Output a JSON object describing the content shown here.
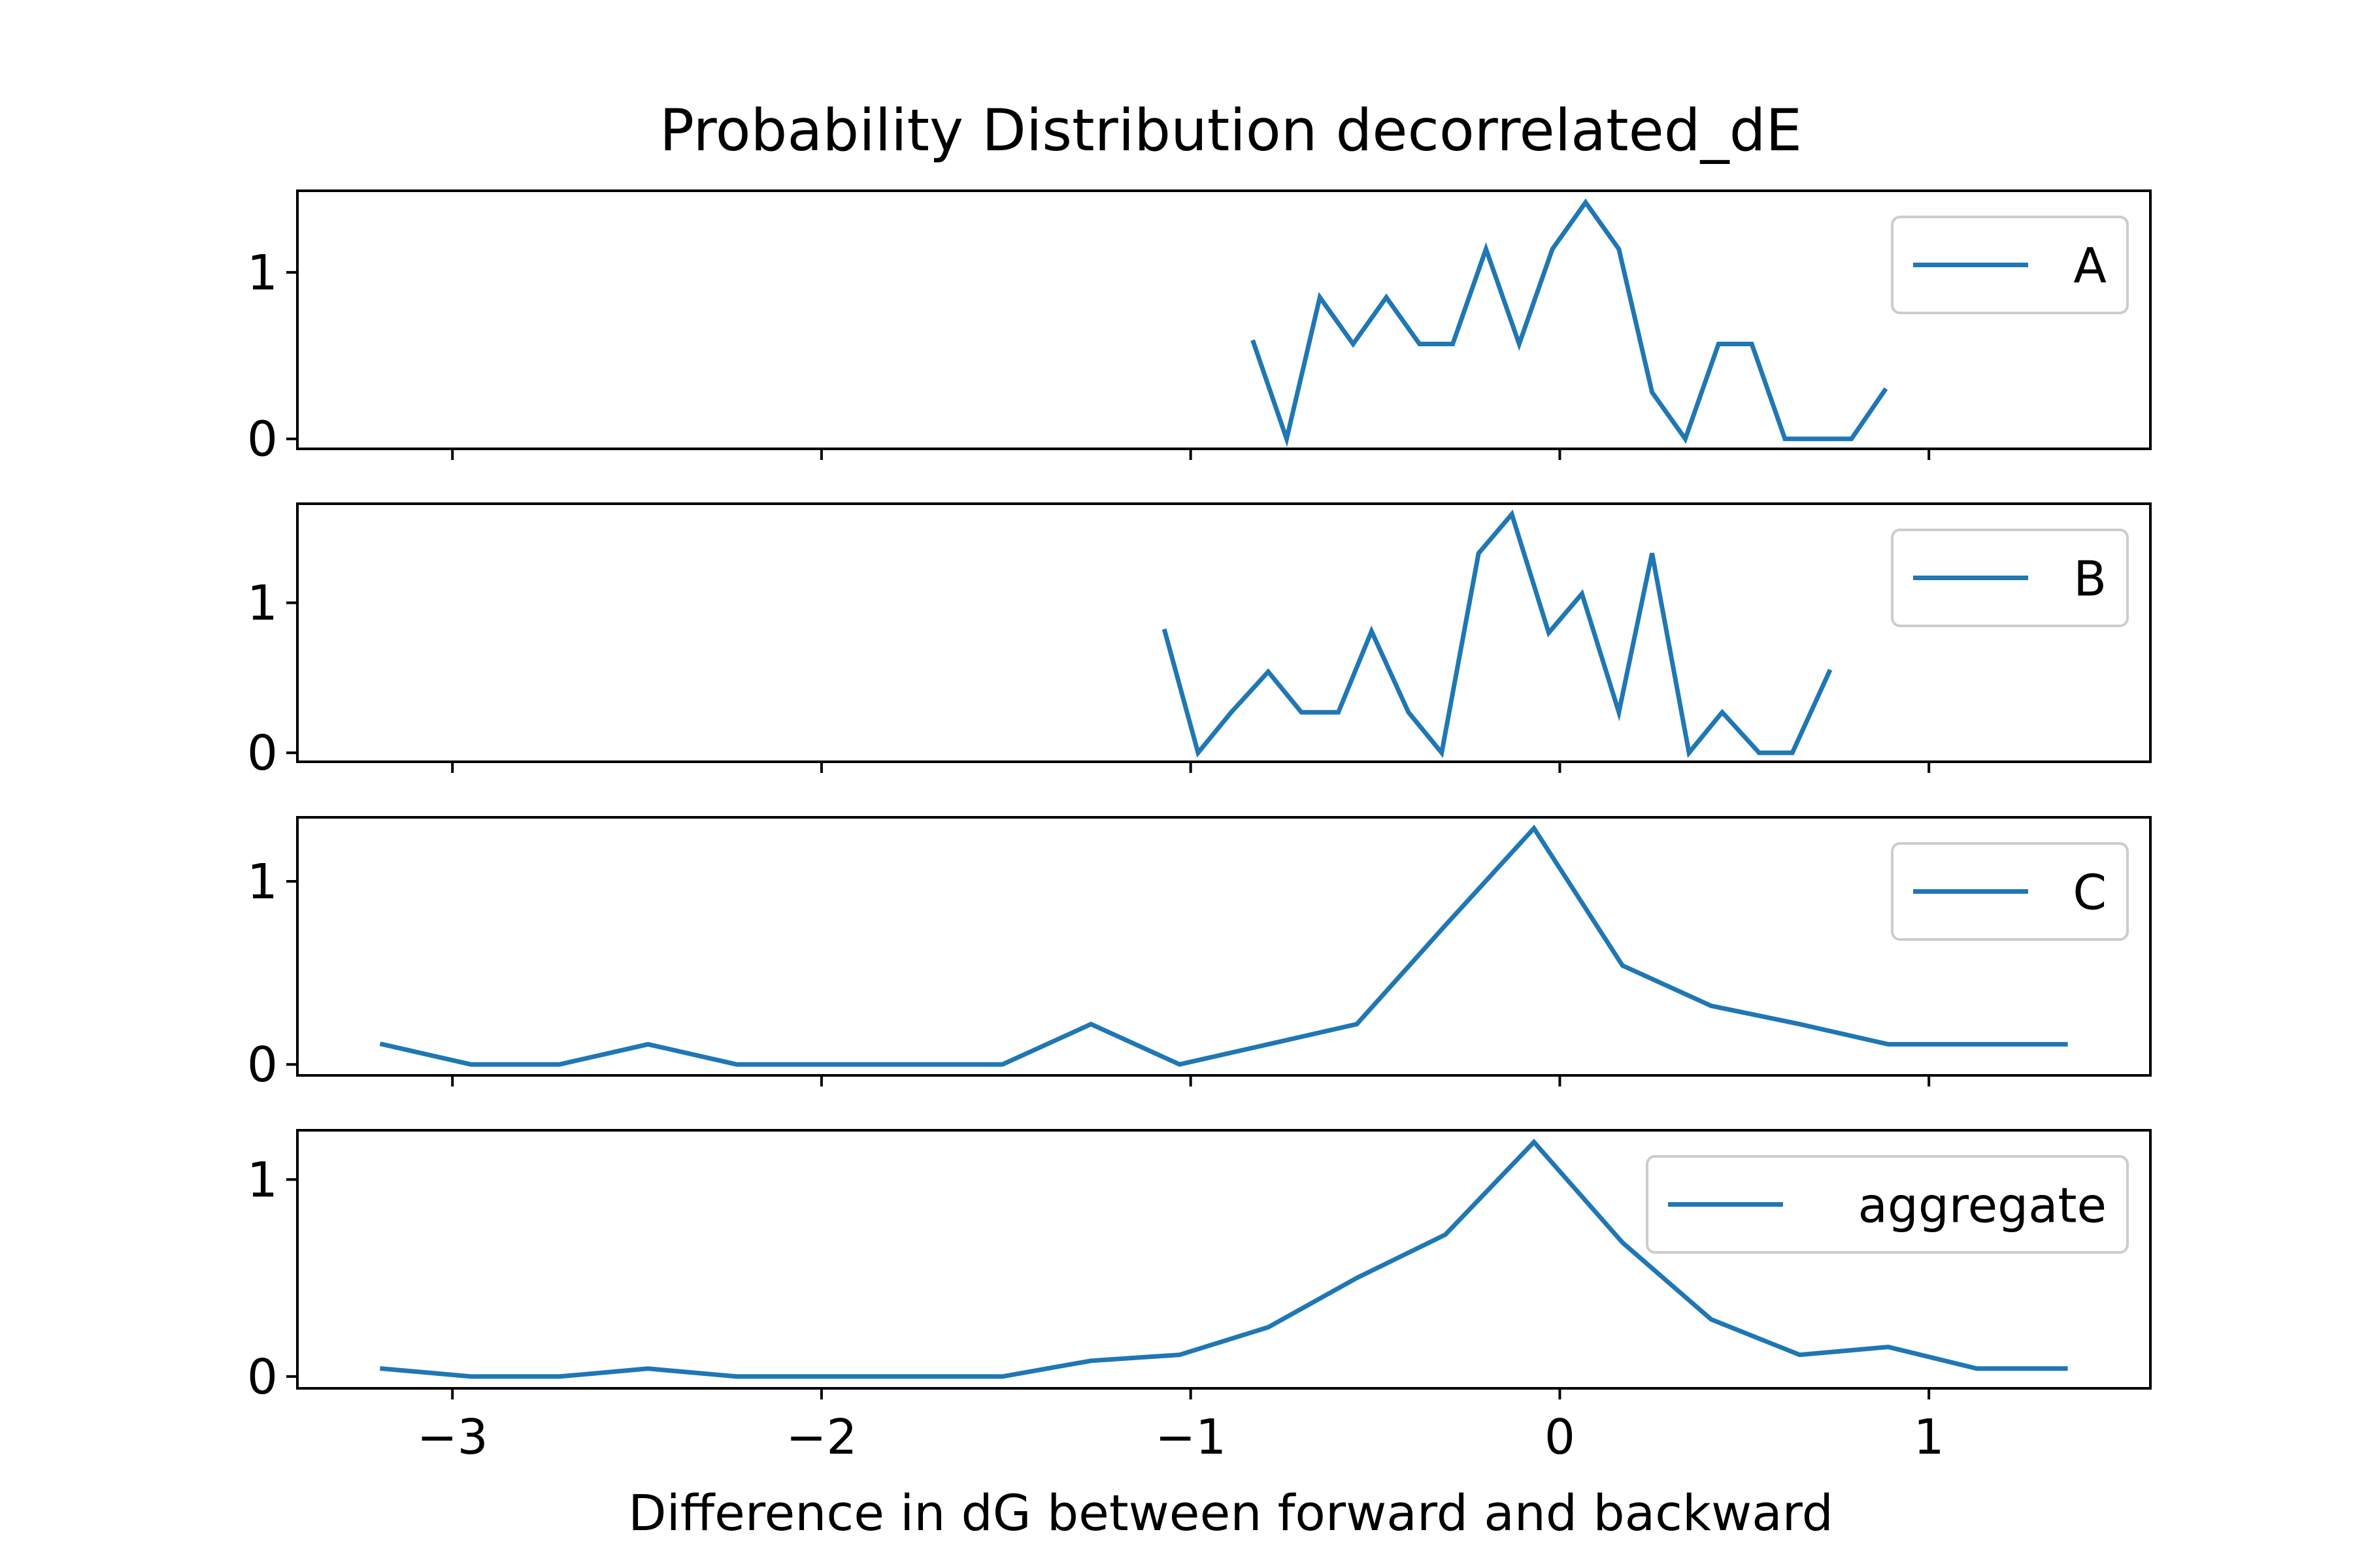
{
  "chart_data": {
    "type": "line",
    "title": "Probability Distribution decorrelated_dE",
    "xlabel": "Difference in dG between forward and backward",
    "ylabel": "",
    "xlim": [
      -3.42,
      1.6
    ],
    "xticks": [
      -3,
      -2,
      -1,
      0,
      1
    ],
    "xtick_labels": [
      "−3",
      "−2",
      "−1",
      "0",
      "1"
    ],
    "line_color": "#1f77b4",
    "legend_position": "upper right",
    "subplots": [
      {
        "ylim": [
          -0.06,
          1.49
        ],
        "yticks": [
          0,
          1
        ],
        "ytick_labels": [
          "0",
          "1"
        ],
        "series": [
          {
            "name": "A",
            "x": [
              -0.83,
              -0.74,
              -0.65,
              -0.56,
              -0.47,
              -0.38,
              -0.29,
              -0.2,
              -0.11,
              -0.02,
              0.07,
              0.16,
              0.25,
              0.34,
              0.43,
              0.52,
              0.61,
              0.7,
              0.79,
              0.88
            ],
            "y": [
              0.58,
              0.0,
              0.85,
              0.57,
              0.85,
              0.57,
              0.57,
              1.14,
              0.57,
              1.14,
              1.42,
              1.14,
              0.28,
              0.0,
              0.57,
              0.57,
              0.0,
              0.0,
              0.0,
              0.29
            ]
          }
        ]
      },
      {
        "ylim": [
          -0.06,
          1.66
        ],
        "yticks": [
          0,
          1
        ],
        "ytick_labels": [
          "0",
          "1"
        ],
        "series": [
          {
            "name": "B",
            "x": [
              -1.07,
              -0.98,
              -0.89,
              -0.79,
              -0.7,
              -0.6,
              -0.51,
              -0.41,
              -0.32,
              -0.22,
              -0.13,
              -0.03,
              0.06,
              0.16,
              0.25,
              0.35,
              0.44,
              0.54,
              0.63,
              0.73
            ],
            "y": [
              0.81,
              0.0,
              0.27,
              0.54,
              0.27,
              0.27,
              0.81,
              0.27,
              0.0,
              1.33,
              1.59,
              0.8,
              1.06,
              0.27,
              1.33,
              0.0,
              0.27,
              0.0,
              0.0,
              0.54
            ]
          }
        ]
      },
      {
        "ylim": [
          -0.06,
          1.35
        ],
        "yticks": [
          0,
          1
        ],
        "ytick_labels": [
          "0",
          "1"
        ],
        "series": [
          {
            "name": "C",
            "x": [
              -3.19,
              -2.95,
              -2.71,
              -2.47,
              -2.23,
              -1.99,
              -1.75,
              -1.51,
              -1.27,
              -1.03,
              -0.79,
              -0.55,
              -0.31,
              -0.07,
              0.17,
              0.41,
              0.65,
              0.89,
              1.13,
              1.37
            ],
            "y": [
              0.11,
              0.0,
              0.0,
              0.11,
              0.0,
              0.0,
              0.0,
              0.0,
              0.22,
              0.0,
              0.11,
              0.22,
              0.76,
              1.29,
              0.54,
              0.32,
              0.22,
              0.11,
              0.11,
              0.11
            ]
          }
        ]
      },
      {
        "ylim": [
          -0.06,
          1.25
        ],
        "yticks": [
          0,
          1
        ],
        "ytick_labels": [
          "0",
          "1"
        ],
        "series": [
          {
            "name": "aggregate",
            "x": [
              -3.19,
              -2.95,
              -2.71,
              -2.47,
              -2.23,
              -1.99,
              -1.75,
              -1.51,
              -1.27,
              -1.03,
              -0.79,
              -0.55,
              -0.31,
              -0.07,
              0.17,
              0.41,
              0.65,
              0.89,
              1.13,
              1.37
            ],
            "y": [
              0.04,
              0.0,
              0.0,
              0.04,
              0.0,
              0.0,
              0.0,
              0.0,
              0.08,
              0.11,
              0.25,
              0.5,
              0.72,
              1.19,
              0.68,
              0.29,
              0.11,
              0.15,
              0.04,
              0.04
            ]
          }
        ]
      }
    ]
  }
}
